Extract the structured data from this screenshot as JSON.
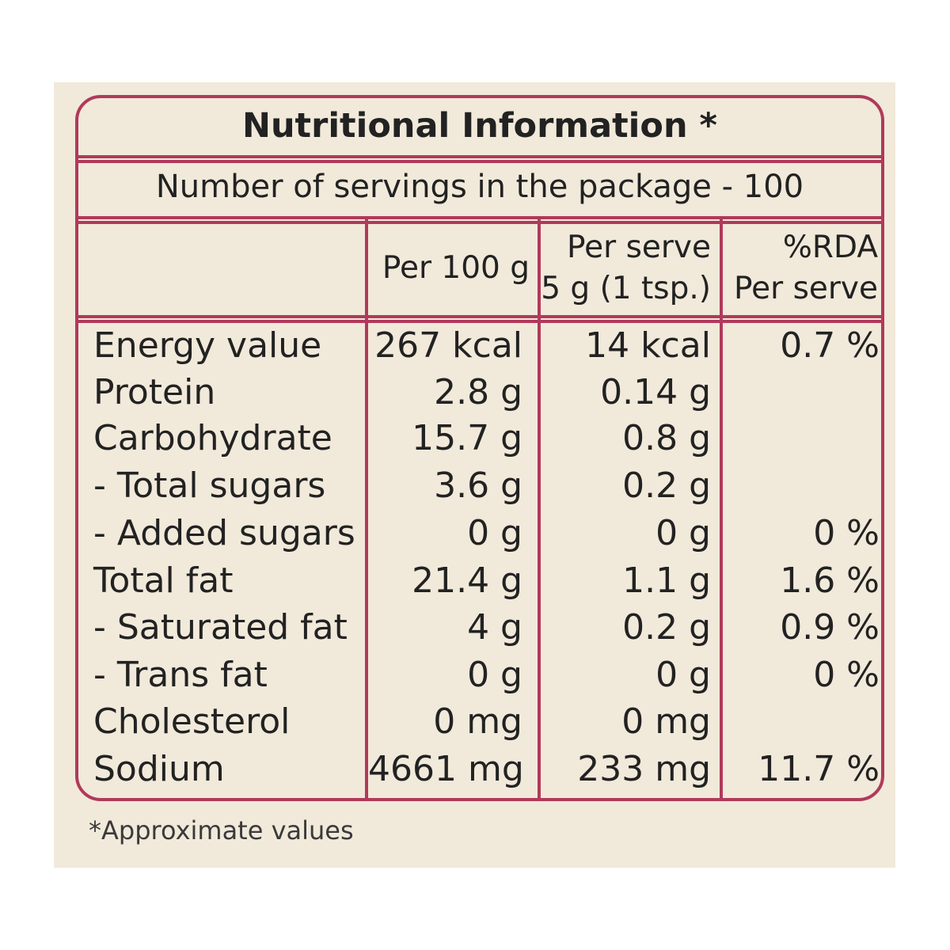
{
  "title": "Nutritional Information *",
  "servings_text": "Number of servings in the package - 100",
  "columns": {
    "per100": "Per 100 g",
    "perserve_line1": "Per serve",
    "perserve_line2": "5 g (1 tsp.)",
    "rda_line1": "%RDA",
    "rda_line2": "Per serve"
  },
  "rows": [
    {
      "label": "Energy value",
      "per100": "267 kcal",
      "perserve": "14 kcal",
      "rda": "0.7 %"
    },
    {
      "label": "Protein",
      "per100": "2.8 g",
      "perserve": "0.14 g",
      "rda": ""
    },
    {
      "label": "Carbohydrate",
      "per100": "15.7 g",
      "perserve": "0.8 g",
      "rda": ""
    },
    {
      "label": " - Total sugars",
      "per100": "3.6 g",
      "perserve": "0.2 g",
      "rda": ""
    },
    {
      "label": " - Added sugars",
      "per100": "0 g",
      "perserve": "0 g",
      "rda": "0 %"
    },
    {
      "label": "Total fat",
      "per100": "21.4 g",
      "perserve": "1.1 g",
      "rda": "1.6 %"
    },
    {
      "label": " - Saturated fat",
      "per100": "4 g",
      "perserve": "0.2 g",
      "rda": "0.9 %"
    },
    {
      "label": " - Trans fat",
      "per100": "0 g",
      "perserve": "0 g",
      "rda": "0 %"
    },
    {
      "label": "Cholesterol",
      "per100": "0 mg",
      "perserve": "0 mg",
      "rda": ""
    },
    {
      "label": "Sodium",
      "per100": "4661 mg",
      "perserve": "233 mg",
      "rda": "11.7 %"
    }
  ],
  "footnote": "*Approximate values",
  "colors": {
    "border": "#b03a5b",
    "background": "#f1e9da",
    "text": "#222222"
  }
}
